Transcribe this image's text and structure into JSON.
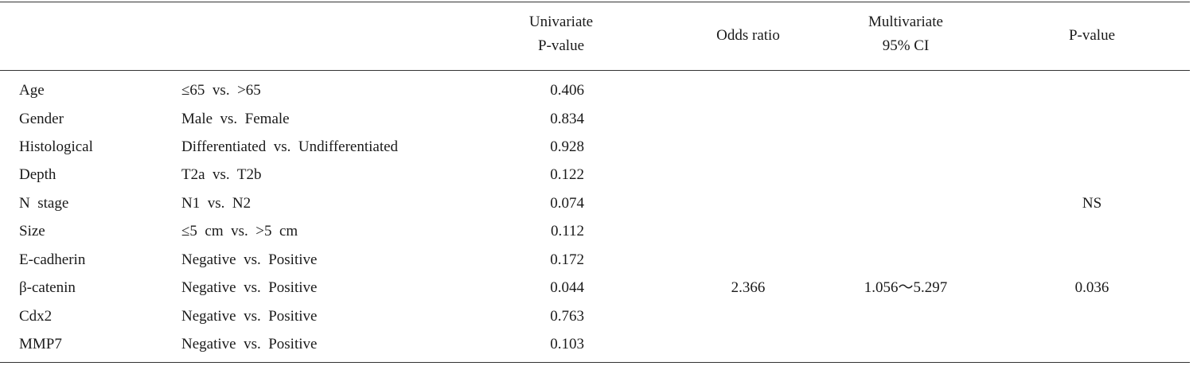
{
  "header": {
    "univariate_line1": "Univariate",
    "univariate_line2": "P-value",
    "odds_ratio": "Odds  ratio",
    "multivariate_line1": "Multivariate",
    "multivariate_line2": "95%  CI",
    "p_value": "P-value"
  },
  "rows": [
    {
      "variable": "Age",
      "comparison": "≤65  vs.  >65",
      "univariate_p": "0.406"
    },
    {
      "variable": "Gender",
      "comparison": "Male  vs.  Female",
      "univariate_p": "0.834"
    },
    {
      "variable": "Histological",
      "comparison": "Differentiated  vs.  Undifferentiated",
      "univariate_p": "0.928"
    },
    {
      "variable": "Depth",
      "comparison": "T2a  vs.  T2b",
      "univariate_p": "0.122"
    },
    {
      "variable": "N  stage",
      "comparison": "N1  vs.  N2",
      "univariate_p": "0.074"
    },
    {
      "variable": "Size",
      "comparison": "≤5  cm  vs.  >5  cm",
      "univariate_p": "0.112"
    },
    {
      "variable": "E-cadherin",
      "comparison": "Negative  vs.  Positive",
      "univariate_p": "0.172"
    },
    {
      "variable": "β-catenin",
      "comparison": "Negative  vs.  Positive",
      "univariate_p": "0.044"
    },
    {
      "variable": "Cdx2",
      "comparison": "Negative  vs.  Positive",
      "univariate_p": "0.763"
    },
    {
      "variable": "MMP7",
      "comparison": "Negative  vs.  Positive",
      "univariate_p": "0.103"
    }
  ],
  "multivariate": {
    "ns_label": "NS",
    "beta_catenin_odds_ratio": "2.366",
    "beta_catenin_ci": "1.056～5.297",
    "beta_catenin_p": "0.036"
  }
}
